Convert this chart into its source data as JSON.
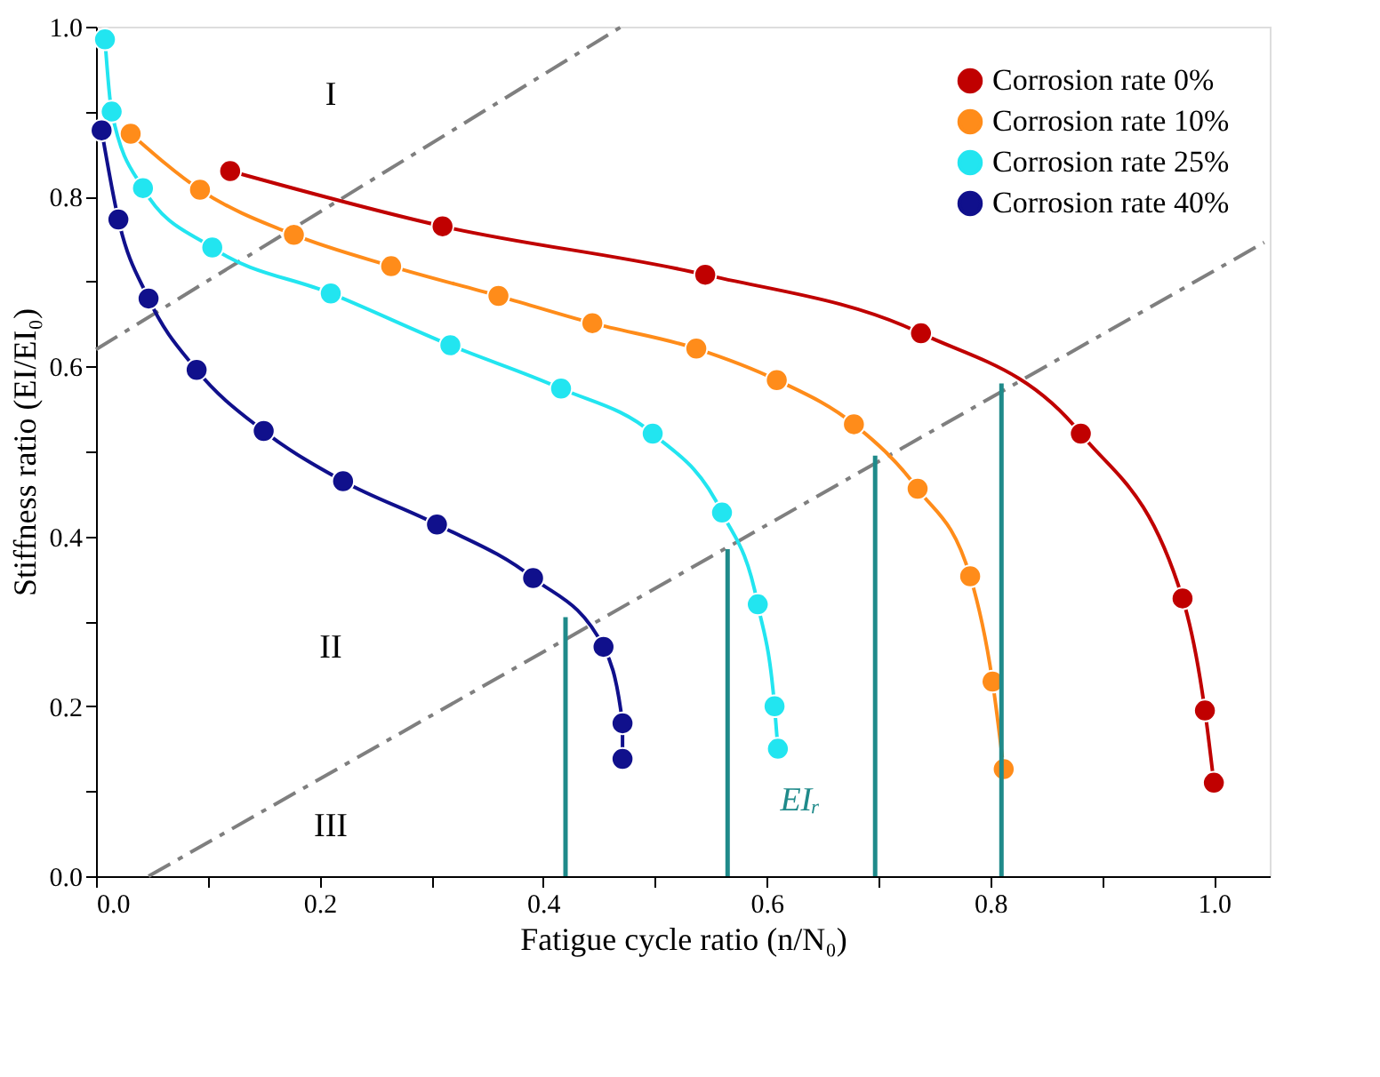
{
  "chart_data": {
    "type": "line",
    "xlabel": "Fatigue cycle ratio (n/N₀)",
    "ylabel": "Stiffness ratio (EI/EI₀)",
    "xlim": [
      0,
      1.05
    ],
    "ylim": [
      0,
      1.0
    ],
    "xticks": [
      {
        "value": 0,
        "label": "0.0"
      },
      {
        "value": 0.1,
        "label": null
      },
      {
        "value": 0.2,
        "label": "0.2"
      },
      {
        "value": 0.3,
        "label": null
      },
      {
        "value": 0.4,
        "label": "0.4"
      },
      {
        "value": 0.5,
        "label": null
      },
      {
        "value": 0.6,
        "label": "0.6"
      },
      {
        "value": 0.7,
        "label": null
      },
      {
        "value": 0.8,
        "label": "0.8"
      },
      {
        "value": 0.9,
        "label": null
      },
      {
        "value": 1.0,
        "label": "1.0"
      }
    ],
    "yticks": [
      {
        "value": 0,
        "label": "0.0"
      },
      {
        "value": 0.1,
        "label": null
      },
      {
        "value": 0.2,
        "label": "0.2"
      },
      {
        "value": 0.3,
        "label": null
      },
      {
        "value": 0.4,
        "label": "0.4"
      },
      {
        "value": 0.5,
        "label": null
      },
      {
        "value": 0.6,
        "label": "0.6"
      },
      {
        "value": 0.7,
        "label": null
      },
      {
        "value": 0.8,
        "label": "0.8"
      },
      {
        "value": 0.9,
        "label": null
      },
      {
        "value": 1.0,
        "label": "1.0"
      }
    ],
    "grid": false,
    "legend": "top right",
    "marker": "circle",
    "series": [
      {
        "type": "line",
        "line_style": "dashed",
        "color": "#7f7f7f",
        "marker": "none",
        "x": [
          0,
          0.47
        ],
        "values": [
          0.62,
          1.0
        ]
      },
      {
        "type": "line",
        "line_style": "dashed",
        "color": "#7f7f7f",
        "marker": "none",
        "x": [
          0.047,
          1.045
        ],
        "values": [
          0,
          0.746
        ]
      },
      {
        "name": "Corrosion rate 0%",
        "color": "#c00000",
        "x": [
          0.12,
          0.31,
          0.545,
          0.738,
          0.881,
          0.972,
          0.992,
          1.0
        ],
        "values": [
          0.83,
          0.765,
          0.708,
          0.639,
          0.521,
          0.327,
          0.195,
          0.11
        ]
      },
      {
        "name": "Corrosion rate 10%",
        "color": "#ff8c1a",
        "x": [
          0.031,
          0.093,
          0.177,
          0.264,
          0.36,
          0.444,
          0.537,
          0.609,
          0.678,
          0.735,
          0.782,
          0.802,
          0.812
        ],
        "values": [
          0.874,
          0.808,
          0.755,
          0.718,
          0.683,
          0.651,
          0.621,
          0.584,
          0.532,
          0.456,
          0.353,
          0.229,
          0.126
        ]
      },
      {
        "name": "Corrosion rate 25%",
        "color": "#22e5f0",
        "x": [
          0.008,
          0.014,
          0.042,
          0.104,
          0.21,
          0.317,
          0.416,
          0.498,
          0.56,
          0.592,
          0.607,
          0.61
        ],
        "values": [
          0.985,
          0.9,
          0.81,
          0.74,
          0.686,
          0.625,
          0.574,
          0.521,
          0.428,
          0.32,
          0.2,
          0.15
        ]
      },
      {
        "name": "Corrosion rate 40%",
        "color": "#10108c",
        "x": [
          0.005,
          0.02,
          0.047,
          0.09,
          0.15,
          0.221,
          0.305,
          0.391,
          0.454,
          0.471,
          0.471
        ],
        "values": [
          0.878,
          0.773,
          0.68,
          0.596,
          0.524,
          0.465,
          0.414,
          0.351,
          0.27,
          0.18,
          0.138
        ]
      },
      {
        "type": "bar",
        "color": "#1f8a8a",
        "x": [
          0.42,
          0.565,
          0.697,
          0.81
        ],
        "values": [
          0.305,
          0.385,
          0.495,
          0.58
        ]
      }
    ],
    "annotations": [
      "I",
      "II",
      "III",
      "EIᵣ"
    ]
  }
}
